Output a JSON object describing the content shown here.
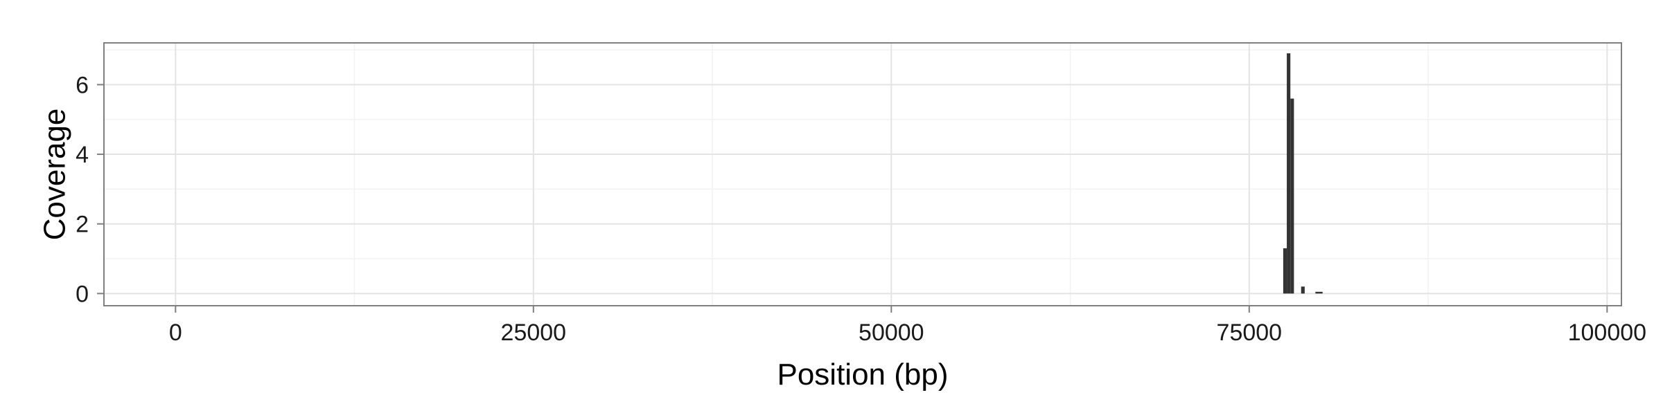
{
  "chart_data": {
    "type": "bar",
    "xlabel": "Position (bp)",
    "ylabel": "Coverage",
    "xlim": [
      -5000,
      101000
    ],
    "ylim": [
      -0.35,
      7.2
    ],
    "x_ticks": [
      0,
      25000,
      50000,
      75000,
      100000
    ],
    "x_tick_labels": [
      "0",
      "25000",
      "50000",
      "75000",
      "100000"
    ],
    "y_ticks": [
      0,
      2,
      4,
      6
    ],
    "y_tick_labels": [
      "0",
      "2",
      "4",
      "6"
    ],
    "bar_width": 250,
    "x": [
      77500,
      77750,
      78000,
      78750,
      79750,
      80000
    ],
    "values": [
      1.3,
      6.9,
      5.6,
      0.2,
      0.05,
      0.05
    ],
    "grid": true,
    "colors": {
      "bar": "#333333",
      "grid_major": "#e3e3e3",
      "grid_minor": "#f2f2f2",
      "panel_border": "#7f7f7f",
      "tick": "#7f7f7f",
      "text": "#1a1a1a"
    }
  }
}
